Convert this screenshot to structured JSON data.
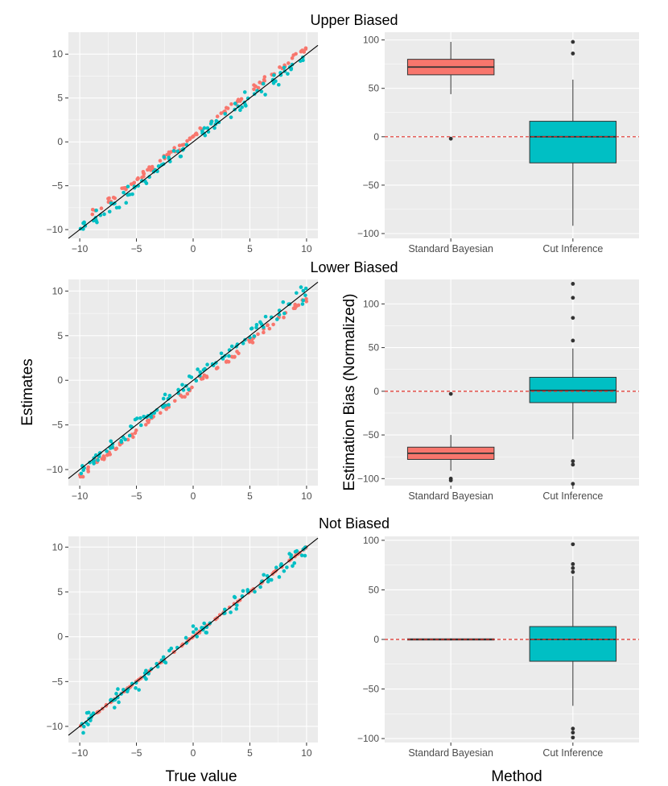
{
  "figure": {
    "y_label_left": "Estimates",
    "y_label_right": "Estimation Bias (Normalized)",
    "x_label_left": "True value",
    "x_label_right": "Method"
  },
  "colors": {
    "standard": "#F8766D",
    "cut": "#00BFC4",
    "panel_bg": "#EBEBEB",
    "grid": "#FFFFFF",
    "ref_line": "#E0302A"
  },
  "chart_data": [
    {
      "type": "scatter",
      "row_title": "Upper Biased",
      "xlim": [
        -11,
        11
      ],
      "ylim": [
        -11,
        12.5
      ],
      "x_ticks": [
        -10,
        -5,
        0,
        5,
        10
      ],
      "y_ticks": [
        -10,
        -5,
        0,
        5,
        10
      ],
      "grid": true,
      "reference_line": "y = x",
      "series": [
        {
          "color_key": "standard",
          "bias_mean": 0.72,
          "bias_sd": 0.1,
          "noise": 0.15,
          "seed": 11
        },
        {
          "color_key": "cut",
          "bias_mean": 0.0,
          "bias_sd": 0.35,
          "noise": 0.25,
          "seed": 12
        }
      ]
    },
    {
      "type": "box",
      "categories": [
        "Standard Bayesian",
        "Cut Inference"
      ],
      "ylim": [
        -105,
        108
      ],
      "y_ticks": [
        -100,
        -50,
        0,
        50,
        100
      ],
      "reference_line": 0,
      "boxes": [
        {
          "category": "Standard Bayesian",
          "color_key": "standard",
          "q1": 64,
          "median": 72,
          "q3": 80,
          "whisker_low": 44,
          "whisker_high": 98,
          "outliers": [
            -2
          ]
        },
        {
          "category": "Cut Inference",
          "color_key": "cut",
          "q1": -27,
          "median": 0,
          "q3": 16,
          "whisker_low": -92,
          "whisker_high": 59,
          "outliers": [
            98,
            86
          ]
        }
      ]
    },
    {
      "type": "scatter",
      "row_title": "Lower Biased",
      "xlim": [
        -11,
        11
      ],
      "ylim": [
        -11.8,
        11.3
      ],
      "x_ticks": [
        -10,
        -5,
        0,
        5,
        10
      ],
      "y_ticks": [
        -10,
        -5,
        0,
        5,
        10
      ],
      "grid": true,
      "reference_line": "y = x",
      "series": [
        {
          "color_key": "standard",
          "bias_mean": -0.72,
          "bias_sd": 0.1,
          "noise": 0.15,
          "seed": 21
        },
        {
          "color_key": "cut",
          "bias_mean": 0.0,
          "bias_sd": 0.35,
          "noise": 0.25,
          "seed": 22
        }
      ]
    },
    {
      "type": "box",
      "categories": [
        "Standard Bayesian",
        "Cut Inference"
      ],
      "ylim": [
        -108,
        128
      ],
      "y_ticks": [
        -100,
        -50,
        0,
        50,
        100
      ],
      "reference_line": 0,
      "boxes": [
        {
          "category": "Standard Bayesian",
          "color_key": "standard",
          "q1": -78,
          "median": -71,
          "q3": -64,
          "whisker_low": -91,
          "whisker_high": -50,
          "outliers": [
            -3,
            -100,
            -102
          ]
        },
        {
          "category": "Cut Inference",
          "color_key": "cut",
          "q1": -13,
          "median": 1,
          "q3": 16,
          "whisker_low": -55,
          "whisker_high": 49,
          "outliers": [
            123,
            107,
            84,
            58,
            -80,
            -84,
            -106
          ]
        }
      ]
    },
    {
      "type": "scatter",
      "row_title": "Not Biased",
      "xlim": [
        -11,
        11
      ],
      "ylim": [
        -11.8,
        11.2
      ],
      "x_ticks": [
        -10,
        -5,
        0,
        5,
        10
      ],
      "y_ticks": [
        -10,
        -5,
        0,
        5,
        10
      ],
      "grid": true,
      "reference_line": "y = x",
      "series": [
        {
          "color_key": "standard",
          "bias_mean": 0.0,
          "bias_sd": 0.0,
          "noise": 0.04,
          "seed": 31
        },
        {
          "color_key": "cut",
          "bias_mean": 0.0,
          "bias_sd": 0.35,
          "noise": 0.25,
          "seed": 32
        }
      ]
    },
    {
      "type": "box",
      "categories": [
        "Standard Bayesian",
        "Cut Inference"
      ],
      "ylim": [
        -104,
        104
      ],
      "y_ticks": [
        -100,
        -50,
        0,
        50,
        100
      ],
      "reference_line": 0,
      "boxes": [
        {
          "category": "Standard Bayesian",
          "color_key": "standard",
          "q1": -0.6,
          "median": 0,
          "q3": 0.6,
          "whisker_low": -1,
          "whisker_high": 1,
          "outliers": []
        },
        {
          "category": "Cut Inference",
          "color_key": "cut",
          "q1": -22,
          "median": 0,
          "q3": 13,
          "whisker_low": -67,
          "whisker_high": 64,
          "outliers": [
            96,
            76,
            72,
            68,
            -90,
            -94,
            -99
          ]
        }
      ]
    }
  ]
}
